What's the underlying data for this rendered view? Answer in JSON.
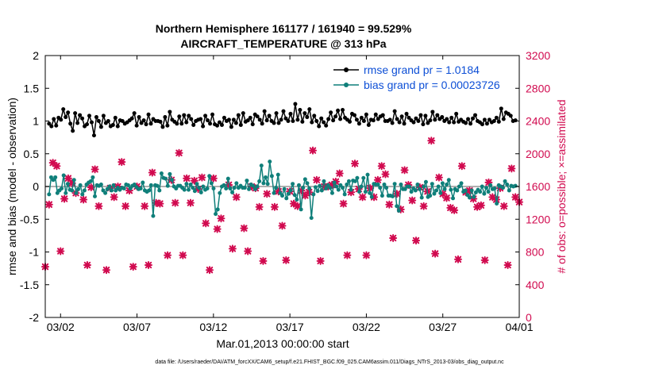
{
  "chart_data": {
    "type": "line",
    "title": "Northern Hemisphere 161177 / 161940 = 99.529%",
    "subtitle": "AIRCRAFT_TEMPERATURE @ 313 hPa",
    "xlabel": "Mar.01,2013 00:00:00 start",
    "ylabel": "rmse and bias (model - observation)",
    "y2label": "# of obs: o=possible; ×=assimilated",
    "ylim": [
      -2,
      2
    ],
    "y2lim": [
      0,
      3200
    ],
    "xlim": [
      1,
      32
    ],
    "yticks": [
      "2",
      "1.5",
      "1",
      "0.5",
      "0",
      "-0.5",
      "-1",
      "-1.5",
      "-2"
    ],
    "y2ticks": [
      "3200",
      "2800",
      "2400",
      "2000",
      "1600",
      "1200",
      "800",
      "400",
      "0"
    ],
    "xticks": [
      {
        "label": "03/02",
        "day": 2
      },
      {
        "label": "03/07",
        "day": 7
      },
      {
        "label": "03/12",
        "day": 12
      },
      {
        "label": "03/17",
        "day": 17
      },
      {
        "label": "03/22",
        "day": 22
      },
      {
        "label": "03/27",
        "day": 27
      },
      {
        "label": "04/01",
        "day": 32
      }
    ],
    "legend": {
      "position": "top-right",
      "rmse_label": "rmse grand pr = 1.0184",
      "bias_label": "bias grand pr = 0.00023726"
    },
    "colors": {
      "rmse": "#000000",
      "bias": "#0f7f7a",
      "obs": "#d10a4f",
      "zero_line": "#b0b0b0",
      "legend_text": "#0d4fd6"
    },
    "series": [
      {
        "name": "rmse",
        "axis": "left",
        "values": [
          0.96,
          0.92,
          1.03,
          0.93,
          1.05,
          1.02,
          1.18,
          1.06,
          1.13,
          0.96,
          0.85,
          1.12,
          0.97,
          1.09,
          1.04,
          0.92,
          0.95,
          1.08,
          0.98,
          0.78,
          1.06,
          1.0,
          0.91,
          1.08,
          0.97,
          1.0,
          0.92,
          0.94,
          1.05,
          0.92,
          1.01,
          1.0,
          0.96,
          0.98,
          1.01,
          1.04,
          1.12,
          0.93,
          1.06,
          0.97,
          1.01,
          0.95,
          1.1,
          0.96,
          1.03,
          1.0,
          1.0,
          0.99,
          0.91,
          1.06,
          0.93,
          1.14,
          1.02,
          0.99,
          0.96,
          1.07,
          0.96,
          1.09,
          0.98,
          1.08,
          1.03,
          0.94,
          1.0,
          1.02,
          1.03,
          0.92,
          1.08,
          1.01,
          0.96,
          1.1,
          0.95,
          0.93,
          0.98,
          0.94,
          1.05,
          1.0,
          1.02,
          0.91,
          1.02,
          0.97,
          1.09,
          0.94,
          1.12,
          0.99,
          1.01,
          1.05,
          0.95,
          1.1,
          1.07,
          1.02,
          0.96,
          1.15,
          1.01,
          1.08,
          1.0,
          0.97,
          1.12,
          0.97,
          1.02,
          1.15,
          1.04,
          1.0,
          1.11,
          1.0,
          1.26,
          1.02,
          1.17,
          0.99,
          1.12,
          1.06,
          1.18,
          0.98,
          1.08,
          1.0,
          0.92,
          1.04,
          0.98,
          0.93,
          1.03,
          1.13,
          1.01,
          1.07,
          1.16,
          1.03,
          1.17,
          1.05,
          1.02,
          0.99,
          1.11,
          1.09,
          1.02,
          0.96,
          1.05,
          1.0,
          1.1,
          0.94,
          1.02,
          1.01,
          1.1,
          1.03,
          1.07,
          1.09,
          1.0,
          1.0,
          1.02,
          0.97,
          1.15,
          1.03,
          0.98,
          1.07,
          0.96,
          1.11,
          1.05,
          1.01,
          0.98,
          1.04,
          1.0,
          1.09,
          0.95,
          1.08,
          0.97,
          1.01,
          1.14,
          1.02,
          1.09,
          1.03,
          1.06,
          1.0,
          1.03,
          0.98,
          1.05,
          0.98,
          1.11,
          0.99,
          1.02,
          0.99,
          0.97,
          1.03,
          0.96,
          1.04,
          1.09,
          1.0,
          0.98,
          0.95,
          1.02,
          0.96,
          1.02,
          0.98,
          1.0,
          1.05,
          0.99,
          1.19,
          1.03,
          1.13,
          1.11,
          1.08,
          1.0,
          1.01
        ]
      },
      {
        "name": "bias",
        "axis": "left",
        "values": [
          -0.12,
          0.14,
          0.1,
          0.14,
          -0.1,
          -0.06,
          -0.03,
          0.17,
          -0.1,
          0.04,
          -0.05,
          -0.06,
          0.1,
          -0.1,
          -0.04,
          0.02,
          -0.12,
          -0.06,
          0.03,
          0.06,
          0.08,
          0.14,
          -0.15,
          0.02,
          0.01,
          0.03,
          -0.06,
          -0.1,
          -0.04,
          0.0,
          -0.06,
          0.02,
          -0.06,
          -0.02,
          -0.05,
          -0.02,
          -0.03,
          0.03,
          0.02,
          -0.03,
          0.01,
          0.03,
          -0.01,
          -0.04,
          -0.03,
          0.06,
          -0.06,
          -0.08,
          -0.06,
          0.02,
          -0.45,
          0.02,
          0.01,
          -0.06,
          0.2,
          0.13,
          0.12,
          0.01,
          0.19,
          0.1,
          0.0,
          -0.03,
          0.01,
          0.01,
          -0.02,
          -0.05,
          0.04,
          -0.05,
          0.03,
          -0.02,
          -0.07,
          0.04,
          -0.02,
          -0.09,
          0.0,
          -0.05,
          -0.03,
          0.16,
          0.05,
          -0.03,
          -0.42,
          -0.35,
          -0.1,
          0.0,
          0.02,
          -0.03,
          0.12,
          -0.03,
          -0.09,
          -0.02,
          0.05,
          -0.02,
          0.01,
          -0.02,
          -0.02,
          0.09,
          -0.04,
          0.03,
          0.01,
          -0.04,
          0.0,
          0.08,
          0.32,
          0.05,
          0.14,
          0.04,
          0.38,
          0.16,
          -0.1,
          -0.02,
          0.18,
          -0.1,
          -0.14,
          -0.04,
          -0.18,
          -0.11,
          -0.06,
          0.04,
          -0.13,
          -0.2,
          0.02,
          -0.35,
          -0.02,
          0.11,
          0.05,
          -0.03,
          -0.48,
          -0.12,
          -0.01,
          -0.07,
          0.01,
          -0.06,
          0.08,
          -0.03,
          0.02,
          -0.02,
          -0.1,
          0.06,
          0.0,
          -0.05,
          0.02,
          -0.02,
          -0.12,
          0.03,
          0.08,
          -0.05,
          0.09,
          0.08,
          0.13,
          -0.08,
          0.0,
          0.13,
          -0.08,
          0.18,
          -0.1,
          -0.16,
          0.04,
          0.03,
          0.03,
          -0.02,
          -0.14,
          0.03,
          -0.02,
          -0.14,
          -0.14,
          -0.15,
          0.04,
          -0.3,
          -0.37,
          0.03,
          -0.04,
          -0.04,
          0.0,
          0.0,
          -0.08,
          -0.03,
          -0.06,
          0.03,
          -0.04,
          -0.17,
          0.0,
          0.07,
          -0.16,
          -0.14,
          0.04,
          -0.11,
          -0.06,
          0.0,
          -0.1,
          0.05,
          -0.04,
          0.03,
          0.1,
          -0.05,
          -0.18,
          -0.04,
          -0.06,
          0.0,
          0.05,
          -0.08,
          -0.06,
          -0.13,
          -0.17,
          -0.06,
          -0.16,
          -0.09,
          -0.05,
          -0.08,
          0.0,
          -0.11,
          -0.02,
          -0.08,
          0.02,
          -0.04,
          -0.03,
          -0.26,
          0.02,
          0.0,
          -0.02,
          0.08,
          0.03,
          -0.06,
          0.01,
          0.0,
          0.01
        ]
      },
      {
        "name": "obs_assimilated",
        "axis": "right",
        "marker": "x",
        "points": [
          [
            1.0,
            620
          ],
          [
            1.25,
            1380
          ],
          [
            1.5,
            1890
          ],
          [
            1.75,
            1850
          ],
          [
            2.0,
            810
          ],
          [
            2.25,
            1450
          ],
          [
            2.5,
            1700
          ],
          [
            2.75,
            1640
          ],
          [
            3.0,
            1520
          ],
          [
            3.5,
            1440
          ],
          [
            3.75,
            640
          ],
          [
            4.0,
            1590
          ],
          [
            4.25,
            1810
          ],
          [
            4.5,
            1360
          ],
          [
            5.0,
            580
          ],
          [
            5.25,
            1580
          ],
          [
            5.5,
            1470
          ],
          [
            5.75,
            1600
          ],
          [
            6.0,
            1900
          ],
          [
            6.25,
            1360
          ],
          [
            6.5,
            1550
          ],
          [
            6.75,
            620
          ],
          [
            7.0,
            1600
          ],
          [
            7.5,
            1360
          ],
          [
            7.75,
            640
          ],
          [
            8.0,
            1770
          ],
          [
            8.25,
            1400
          ],
          [
            8.5,
            1390
          ],
          [
            9.0,
            760
          ],
          [
            9.25,
            1680
          ],
          [
            9.5,
            1400
          ],
          [
            9.75,
            2010
          ],
          [
            10.0,
            760
          ],
          [
            10.25,
            1700
          ],
          [
            10.5,
            1400
          ],
          [
            10.75,
            1670
          ],
          [
            11.0,
            1570
          ],
          [
            11.25,
            1710
          ],
          [
            11.5,
            1150
          ],
          [
            11.75,
            580
          ],
          [
            12.0,
            1700
          ],
          [
            12.25,
            1080
          ],
          [
            12.5,
            1210
          ],
          [
            13.0,
            1620
          ],
          [
            13.25,
            840
          ],
          [
            13.5,
            1470
          ],
          [
            14.0,
            1090
          ],
          [
            14.25,
            810
          ],
          [
            14.5,
            1600
          ],
          [
            14.75,
            1580
          ],
          [
            15.0,
            1350
          ],
          [
            15.25,
            690
          ],
          [
            15.5,
            1510
          ],
          [
            16.0,
            1350
          ],
          [
            16.25,
            1540
          ],
          [
            16.5,
            1120
          ],
          [
            16.75,
            700
          ],
          [
            17.0,
            1540
          ],
          [
            17.25,
            1390
          ],
          [
            17.5,
            1360
          ],
          [
            17.75,
            1550
          ],
          [
            18.0,
            1490
          ],
          [
            18.25,
            1530
          ],
          [
            18.5,
            2040
          ],
          [
            18.75,
            1680
          ],
          [
            19.0,
            690
          ],
          [
            19.25,
            1600
          ],
          [
            19.5,
            1600
          ],
          [
            19.75,
            1620
          ],
          [
            20.0,
            1660
          ],
          [
            20.25,
            1760
          ],
          [
            20.5,
            1390
          ],
          [
            20.75,
            760
          ],
          [
            21.0,
            1530
          ],
          [
            21.25,
            1880
          ],
          [
            21.5,
            1570
          ],
          [
            21.75,
            1470
          ],
          [
            22.0,
            760
          ],
          [
            22.25,
            1580
          ],
          [
            22.5,
            1470
          ],
          [
            22.75,
            1680
          ],
          [
            23.0,
            1850
          ],
          [
            23.25,
            1750
          ],
          [
            23.5,
            1380
          ],
          [
            23.75,
            970
          ],
          [
            24.0,
            1510
          ],
          [
            24.25,
            1320
          ],
          [
            24.5,
            1800
          ],
          [
            24.75,
            1620
          ],
          [
            25.0,
            1430
          ],
          [
            25.25,
            940
          ],
          [
            25.5,
            1590
          ],
          [
            25.75,
            1360
          ],
          [
            26.0,
            1540
          ],
          [
            26.25,
            2160
          ],
          [
            26.5,
            780
          ],
          [
            26.75,
            1710
          ],
          [
            27.0,
            1510
          ],
          [
            27.25,
            1460
          ],
          [
            27.5,
            1340
          ],
          [
            27.75,
            1310
          ],
          [
            28.0,
            710
          ],
          [
            28.25,
            1850
          ],
          [
            28.5,
            1530
          ],
          [
            28.75,
            1550
          ],
          [
            29.0,
            1450
          ],
          [
            29.25,
            1350
          ],
          [
            29.5,
            1370
          ],
          [
            29.75,
            700
          ],
          [
            30.0,
            1650
          ],
          [
            30.25,
            1470
          ],
          [
            30.5,
            1440
          ],
          [
            30.75,
            1580
          ],
          [
            31.0,
            1360
          ],
          [
            31.25,
            640
          ],
          [
            31.5,
            1820
          ],
          [
            31.75,
            1470
          ],
          [
            32.0,
            1410
          ]
        ]
      }
    ]
  },
  "footnote": "data file: /Users/raeder/DAI/ATM_forcXX/CAM6_setup/f.e21.FHIST_BGC.f09_025.CAM6assim.011/Diags_NTrS_2013-03/obs_diag_output.nc"
}
